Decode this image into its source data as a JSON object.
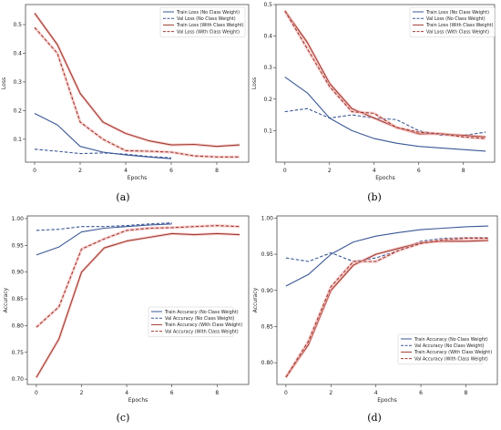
{
  "colors": {
    "train_no_cw": "#3a5795",
    "val_no_cw": "#3a5795",
    "train_cw": "#9e3a2e",
    "val_cw": "#9e3a2e",
    "axis": "#333333",
    "halo": "#f4b3b3"
  },
  "panel_labels": [
    "(a)",
    "(b)",
    "(c)",
    "(d)"
  ],
  "chart_data": [
    {
      "type": "line",
      "panel": "(a)",
      "xlabel": "Epochs",
      "ylabel": "Loss",
      "xlim": [
        -0.4,
        9.4
      ],
      "ylim": [
        0.02,
        0.57
      ],
      "xticks": [
        0,
        2,
        4,
        6,
        8
      ],
      "yticks": [
        0.1,
        0.2,
        0.3,
        0.4,
        0.5
      ],
      "ytick_labels": [
        "0.1",
        "0.2",
        "0.3",
        "0.4",
        "0.5"
      ],
      "legend_position": "top-right",
      "series": [
        {
          "name": "Train Loss (No Class Weight)",
          "style": "solid",
          "color_key": "train_no_cw",
          "x": [
            0,
            1,
            2,
            3,
            4,
            5,
            6
          ],
          "y": [
            0.19,
            0.15,
            0.075,
            0.055,
            0.045,
            0.038,
            0.032
          ]
        },
        {
          "name": "Val Loss (No Class Weight)",
          "style": "dashed",
          "color_key": "val_no_cw",
          "x": [
            0,
            1,
            2,
            3,
            4,
            5,
            6
          ],
          "y": [
            0.065,
            0.058,
            0.05,
            0.052,
            0.048,
            0.04,
            0.035
          ]
        },
        {
          "name": "Train Loss (With Class Weight)",
          "style": "solid",
          "color_key": "train_cw",
          "x": [
            0,
            1,
            2,
            3,
            4,
            5,
            6,
            7,
            8,
            9
          ],
          "y": [
            0.54,
            0.43,
            0.26,
            0.16,
            0.12,
            0.095,
            0.08,
            0.082,
            0.075,
            0.08
          ]
        },
        {
          "name": "Val Loss (With Class Weight)",
          "style": "dashed",
          "color_key": "val_cw",
          "x": [
            0,
            1,
            2,
            3,
            4,
            5,
            6,
            7,
            8,
            9
          ],
          "y": [
            0.49,
            0.4,
            0.16,
            0.1,
            0.06,
            0.058,
            0.055,
            0.042,
            0.038,
            0.038
          ]
        }
      ]
    },
    {
      "type": "line",
      "panel": "(b)",
      "xlabel": "Epochs",
      "ylabel": "Loss",
      "xlim": [
        -0.4,
        9.4
      ],
      "ylim": [
        0.0,
        0.5
      ],
      "xticks": [
        0,
        2,
        4,
        6,
        8
      ],
      "yticks": [
        0.1,
        0.2,
        0.3,
        0.4,
        0.5
      ],
      "ytick_labels": [
        "0.1",
        "0.2",
        "0.3",
        "0.4",
        "0.5"
      ],
      "legend_position": "top-right",
      "series": [
        {
          "name": "Train Loss (No Class Weight)",
          "style": "solid",
          "color_key": "train_no_cw",
          "x": [
            0,
            1,
            2,
            3,
            4,
            5,
            6,
            7,
            8,
            9
          ],
          "y": [
            0.27,
            0.22,
            0.14,
            0.1,
            0.075,
            0.06,
            0.05,
            0.045,
            0.04,
            0.035
          ]
        },
        {
          "name": "Val Loss (No Class Weight)",
          "style": "dashed",
          "color_key": "val_no_cw",
          "x": [
            0,
            1,
            2,
            3,
            4,
            5,
            6,
            7,
            8,
            9
          ],
          "y": [
            0.16,
            0.17,
            0.14,
            0.15,
            0.14,
            0.135,
            0.1,
            0.085,
            0.085,
            0.095
          ]
        },
        {
          "name": "Train Loss (With Class Weight)",
          "style": "solid",
          "color_key": "train_cw",
          "x": [
            0,
            1,
            2,
            3,
            4,
            5,
            6,
            7,
            8,
            9
          ],
          "y": [
            0.48,
            0.38,
            0.25,
            0.17,
            0.14,
            0.11,
            0.09,
            0.09,
            0.085,
            0.08
          ]
        },
        {
          "name": "Val Loss (With Class Weight)",
          "style": "dashed",
          "color_key": "val_cw",
          "x": [
            0,
            1,
            2,
            3,
            4,
            5,
            6,
            7,
            8,
            9
          ],
          "y": [
            0.48,
            0.36,
            0.24,
            0.16,
            0.155,
            0.11,
            0.095,
            0.09,
            0.08,
            0.075
          ]
        }
      ]
    },
    {
      "type": "line",
      "panel": "(c)",
      "xlabel": "Epochs",
      "ylabel": "Accuracy",
      "xlim": [
        -0.4,
        9.4
      ],
      "ylim": [
        0.69,
        1.005
      ],
      "xticks": [
        0,
        2,
        4,
        6,
        8
      ],
      "yticks": [
        0.7,
        0.75,
        0.8,
        0.85,
        0.9,
        0.95,
        1.0
      ],
      "ytick_labels": [
        "0.70",
        "0.75",
        "0.80",
        "0.85",
        "0.90",
        "0.95",
        "1.00"
      ],
      "legend_position": "bottom-right",
      "series": [
        {
          "name": "Train Accuracy (No Class Weight)",
          "style": "solid",
          "color_key": "train_no_cw",
          "x": [
            0,
            1,
            2,
            3,
            4,
            5,
            6
          ],
          "y": [
            0.932,
            0.947,
            0.975,
            0.982,
            0.985,
            0.988,
            0.99
          ]
        },
        {
          "name": "Val Accuracy (No Class Weight)",
          "style": "dashed",
          "color_key": "val_no_cw",
          "x": [
            0,
            1,
            2,
            3,
            4,
            5,
            6
          ],
          "y": [
            0.978,
            0.98,
            0.985,
            0.985,
            0.987,
            0.99,
            0.992
          ]
        },
        {
          "name": "Train Accuracy (With Class Weight)",
          "style": "solid",
          "color_key": "train_cw",
          "x": [
            0,
            1,
            2,
            3,
            4,
            5,
            6,
            7,
            8,
            9
          ],
          "y": [
            0.703,
            0.775,
            0.9,
            0.945,
            0.958,
            0.965,
            0.972,
            0.97,
            0.972,
            0.97
          ]
        },
        {
          "name": "Val Accuracy (With Class Weight)",
          "style": "dashed",
          "color_key": "val_cw",
          "x": [
            0,
            1,
            2,
            3,
            4,
            5,
            6,
            7,
            8,
            9
          ],
          "y": [
            0.797,
            0.835,
            0.943,
            0.962,
            0.978,
            0.982,
            0.983,
            0.985,
            0.987,
            0.985
          ]
        }
      ]
    },
    {
      "type": "line",
      "panel": "(d)",
      "xlabel": "Epochs",
      "ylabel": "Accuracy",
      "xlim": [
        -0.4,
        9.4
      ],
      "ylim": [
        0.77,
        1.003
      ],
      "xticks": [
        0,
        2,
        4,
        6,
        8
      ],
      "yticks": [
        0.8,
        0.85,
        0.9,
        0.95,
        1.0
      ],
      "ytick_labels": [
        "0.80",
        "0.85",
        "0.90",
        "0.95",
        "1.00"
      ],
      "legend_position": "bottom-right",
      "series": [
        {
          "name": "Train Accuracy (No Class Weight)",
          "style": "solid",
          "color_key": "train_no_cw",
          "x": [
            0,
            1,
            2,
            3,
            4,
            5,
            6,
            7,
            8,
            9
          ],
          "y": [
            0.906,
            0.922,
            0.95,
            0.967,
            0.975,
            0.98,
            0.984,
            0.986,
            0.988,
            0.989
          ]
        },
        {
          "name": "Val Accuracy (No Class Weight)",
          "style": "dashed",
          "color_key": "val_no_cw",
          "x": [
            0,
            1,
            2,
            3,
            4,
            5,
            6,
            7,
            8,
            9
          ],
          "y": [
            0.945,
            0.94,
            0.952,
            0.94,
            0.945,
            0.955,
            0.968,
            0.972,
            0.973,
            0.973
          ]
        },
        {
          "name": "Train Accuracy (With Class Weight)",
          "style": "solid",
          "color_key": "train_cw",
          "x": [
            0,
            1,
            2,
            3,
            4,
            5,
            6,
            7,
            8,
            9
          ],
          "y": [
            0.78,
            0.825,
            0.9,
            0.935,
            0.95,
            0.958,
            0.966,
            0.968,
            0.968,
            0.969
          ]
        },
        {
          "name": "Val Accuracy (With Class Weight)",
          "style": "dashed",
          "color_key": "val_cw",
          "x": [
            0,
            1,
            2,
            3,
            4,
            5,
            6,
            7,
            8,
            9
          ],
          "y": [
            0.78,
            0.83,
            0.905,
            0.94,
            0.94,
            0.955,
            0.965,
            0.97,
            0.972,
            0.972
          ]
        }
      ]
    }
  ]
}
